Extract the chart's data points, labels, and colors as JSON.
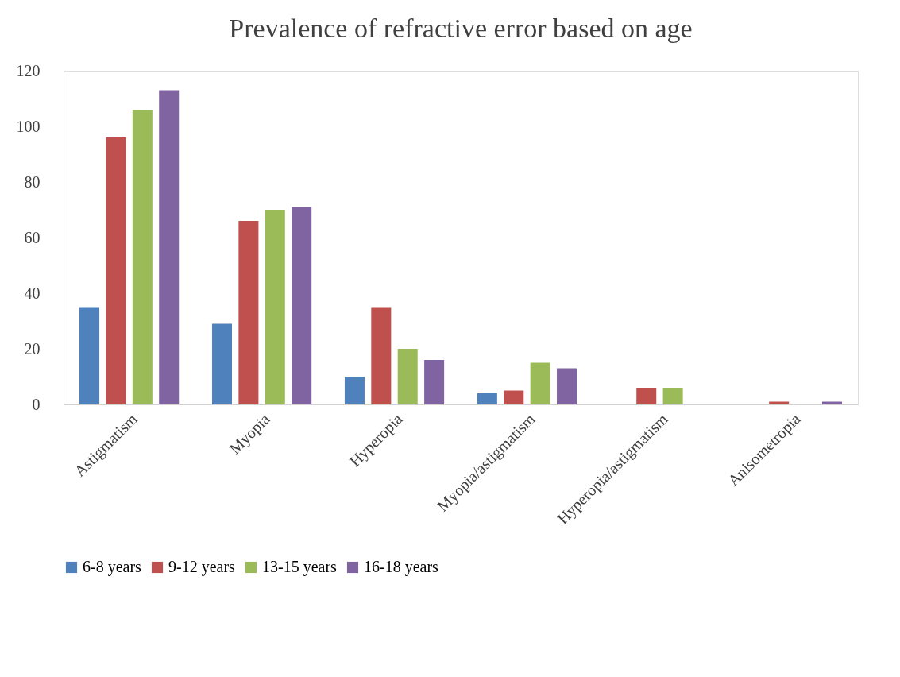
{
  "chart_data": {
    "type": "bar",
    "title": "Prevalence of refractive error based on age",
    "categories": [
      "Astigmatism",
      "Myopia",
      "Hyperopia",
      "Myopia/astigmatism",
      "Hyperopia/astigmatism",
      "Anisometropia"
    ],
    "series": [
      {
        "name": "6-8 years",
        "color": "#4f81bd",
        "values": [
          35,
          29,
          10,
          4,
          0,
          0
        ]
      },
      {
        "name": "9-12 years",
        "color": "#c0504d",
        "values": [
          96,
          66,
          35,
          5,
          6,
          1
        ]
      },
      {
        "name": "13-15 years",
        "color": "#9bbb59",
        "values": [
          106,
          70,
          20,
          15,
          6,
          0
        ]
      },
      {
        "name": "16-18 years",
        "color": "#8064a2",
        "values": [
          113,
          71,
          16,
          13,
          0,
          1
        ]
      }
    ],
    "ylim": [
      0,
      120
    ],
    "yticks": [
      0,
      20,
      40,
      60,
      80,
      100,
      120
    ],
    "grid": false,
    "legend": "bottom"
  }
}
